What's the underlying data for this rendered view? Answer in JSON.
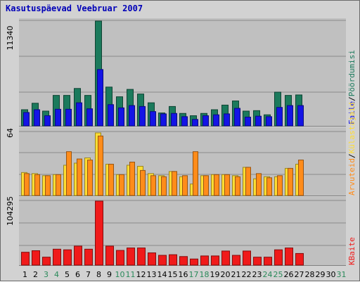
{
  "title": "Kasutuspäevad Veebruar 2007",
  "chart_data": [
    {
      "type": "bar",
      "categories": [
        "1",
        "2",
        "3",
        "4",
        "5",
        "6",
        "7",
        "8",
        "9",
        "10",
        "11",
        "12",
        "13",
        "14",
        "15",
        "16",
        "17",
        "18",
        "19",
        "20",
        "21",
        "22",
        "23",
        "24",
        "25",
        "26",
        "27",
        "28",
        "29",
        "30",
        "31"
      ],
      "weekend_days": [
        "3",
        "4",
        "10",
        "11",
        "17",
        "18",
        "24",
        "25",
        "31"
      ],
      "y_max_label": "11340",
      "ylim": [
        0,
        11340
      ],
      "series": [
        {
          "name": "Pöördumisi",
          "color": "#1b7a5c",
          "values": [
            1750,
            2450,
            1600,
            3300,
            3300,
            4050,
            3300,
            11340,
            4200,
            3150,
            3950,
            3450,
            2500,
            1400,
            2100,
            1350,
            1100,
            1350,
            1750,
            2250,
            2700,
            1600,
            1650,
            1200,
            3650,
            3300,
            3350,
            0,
            0,
            0,
            0
          ]
        },
        {
          "name": "Faile",
          "color": "#1414e6",
          "values": [
            1450,
            1750,
            1100,
            1800,
            1800,
            2500,
            1850,
            6100,
            2300,
            1950,
            2200,
            2100,
            1550,
            1300,
            1350,
            1000,
            700,
            1100,
            1200,
            1300,
            1900,
            950,
            1050,
            1000,
            2000,
            2200,
            2200,
            0,
            0,
            0,
            0
          ]
        }
      ]
    },
    {
      "type": "bar",
      "categories": [
        "1",
        "2",
        "3",
        "4",
        "5",
        "6",
        "7",
        "8",
        "9",
        "10",
        "11",
        "12",
        "13",
        "14",
        "15",
        "16",
        "17",
        "18",
        "19",
        "20",
        "21",
        "22",
        "23",
        "24",
        "25",
        "26",
        "27",
        "28",
        "29",
        "30",
        "31"
      ],
      "y_max_label": "64",
      "ylim": [
        0,
        64
      ],
      "series": [
        {
          "name": "Külastajaid",
          "color": "#ffdd33",
          "values": [
            22,
            21,
            19,
            20,
            29,
            31,
            36,
            60,
            30,
            20,
            29,
            28,
            21,
            19,
            23,
            18,
            11,
            19,
            20,
            20,
            19,
            27,
            16,
            18,
            18,
            26,
            30,
            0,
            0,
            0,
            0
          ]
        },
        {
          "name": "Arvuteid",
          "color": "#ff8c1a",
          "values": [
            21,
            20,
            19,
            20,
            42,
            35,
            34,
            57,
            30,
            20,
            32,
            24,
            19,
            18,
            23,
            19,
            42,
            19,
            20,
            20,
            18,
            27,
            21,
            17,
            19,
            26,
            34,
            0,
            0,
            0,
            0
          ]
        }
      ]
    },
    {
      "type": "bar",
      "categories": [
        "1",
        "2",
        "3",
        "4",
        "5",
        "6",
        "7",
        "8",
        "9",
        "10",
        "11",
        "12",
        "13",
        "14",
        "15",
        "16",
        "17",
        "18",
        "19",
        "20",
        "21",
        "22",
        "23",
        "24",
        "25",
        "26",
        "27",
        "28",
        "29",
        "30",
        "31"
      ],
      "y_max_label": "104295",
      "ylim": [
        0,
        104295
      ],
      "series": [
        {
          "name": "KBaite",
          "color": "#f01a1a",
          "values": [
            21000,
            23500,
            13000,
            26000,
            25000,
            31000,
            26000,
            104295,
            31000,
            24000,
            28000,
            28000,
            20000,
            16000,
            17000,
            14000,
            10000,
            15000,
            15000,
            23000,
            16000,
            23000,
            13000,
            13000,
            25000,
            28000,
            19000,
            0,
            0,
            0,
            0
          ]
        }
      ]
    }
  ],
  "colors": {
    "background": "#d2d2d2",
    "plot_background": "#c0c0c0",
    "gridline": "#8a8a8a",
    "title": "#0000b8",
    "weekday_tick": "#000000",
    "weekend_tick": "#2a8a5a",
    "separator": "#808080"
  }
}
